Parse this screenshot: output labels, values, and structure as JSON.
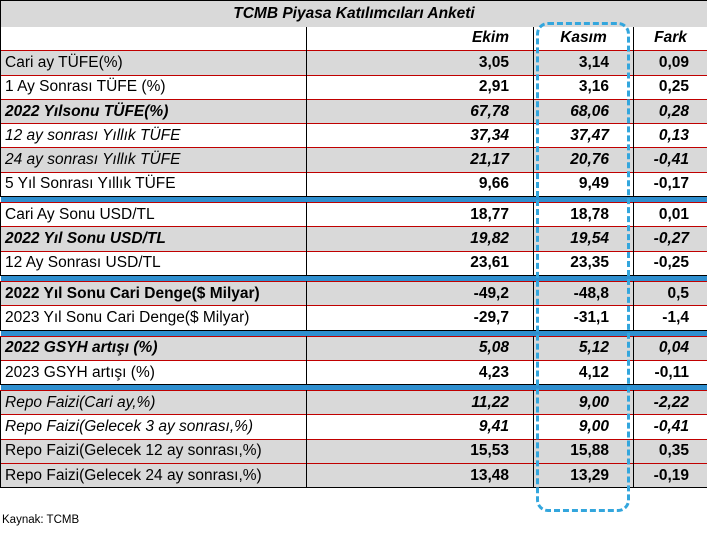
{
  "title": "TCMB Piyasa Katılımcıları Anketi",
  "columns": [
    "",
    "Ekim",
    "Kasım",
    "Fark"
  ],
  "groups": [
    [
      {
        "label": "Cari ay TÜFE(%)",
        "ekim": "3,05",
        "kasim": "3,14",
        "fark": "0,09",
        "shade": true,
        "bold": false,
        "italic": false
      },
      {
        "label": "1 Ay Sonrası TÜFE (%)",
        "ekim": "2,91",
        "kasim": "3,16",
        "fark": "0,25",
        "shade": false,
        "bold": false,
        "italic": false
      },
      {
        "label": "2022 Yılsonu TÜFE(%)",
        "ekim": "67,78",
        "kasim": "68,06",
        "fark": "0,28",
        "shade": true,
        "bold": true,
        "italic": true
      },
      {
        "label": "12 ay sonrası Yıllık TÜFE",
        "ekim": "37,34",
        "kasim": "37,47",
        "fark": "0,13",
        "shade": false,
        "bold": false,
        "italic": true
      },
      {
        "label": "24 ay sonrası Yıllık TÜFE",
        "ekim": "21,17",
        "kasim": "20,76",
        "fark": "-0,41",
        "shade": true,
        "bold": false,
        "italic": true
      },
      {
        "label": "5 Yıl Sonrası Yıllık TÜFE",
        "ekim": "9,66",
        "kasim": "9,49",
        "fark": "-0,17",
        "shade": false,
        "bold": false,
        "italic": false
      }
    ],
    [
      {
        "label": "Cari Ay Sonu USD/TL",
        "ekim": "18,77",
        "kasim": "18,78",
        "fark": "0,01",
        "shade": false,
        "bold": false,
        "italic": false
      },
      {
        "label": "2022 Yıl Sonu USD/TL",
        "ekim": "19,82",
        "kasim": "19,54",
        "fark": "-0,27",
        "shade": true,
        "bold": true,
        "italic": true
      },
      {
        "label": "12 Ay Sonrası USD/TL",
        "ekim": "23,61",
        "kasim": "23,35",
        "fark": "-0,25",
        "shade": false,
        "bold": false,
        "italic": false
      }
    ],
    [
      {
        "label": "2022 Yıl Sonu Cari Denge($ Milyar)",
        "ekim": "-49,2",
        "kasim": "-48,8",
        "fark": "0,5",
        "shade": true,
        "bold": true,
        "italic": false
      },
      {
        "label": "2023 Yıl Sonu Cari Denge($ Milyar)",
        "ekim": "-29,7",
        "kasim": "-31,1",
        "fark": "-1,4",
        "shade": false,
        "bold": false,
        "italic": false
      }
    ],
    [
      {
        "label": "2022 GSYH artışı (%)",
        "ekim": "5,08",
        "kasim": "5,12",
        "fark": "0,04",
        "shade": true,
        "bold": true,
        "italic": true
      },
      {
        "label": "2023 GSYH artışı (%)",
        "ekim": "4,23",
        "kasim": "4,12",
        "fark": "-0,11",
        "shade": false,
        "bold": false,
        "italic": false
      }
    ],
    [
      {
        "label": "Repo Faizi(Cari ay,%)",
        "ekim": "11,22",
        "kasim": "9,00",
        "fark": "-2,22",
        "shade": true,
        "bold": false,
        "italic": true
      },
      {
        "label": "Repo Faizi(Gelecek 3 ay sonrası,%)",
        "ekim": "9,41",
        "kasim": "9,00",
        "fark": "-0,41",
        "shade": false,
        "bold": false,
        "italic": true
      },
      {
        "label": "Repo Faizi(Gelecek 12 ay sonrası,%)",
        "ekim": "15,53",
        "kasim": "15,88",
        "fark": "0,35",
        "shade": true,
        "bold": false,
        "italic": false
      },
      {
        "label": "Repo Faizi(Gelecek 24 ay sonrası,%)",
        "ekim": "13,48",
        "kasim": "13,29",
        "fark": "-0,19",
        "shade": true,
        "bold": false,
        "italic": false
      }
    ]
  ],
  "source": "Kaynak: TCMB",
  "colors": {
    "shade": "#d9d9d9",
    "separator": "#2f8fcf",
    "highlight": "#33a6dd",
    "row_border": "#c00000"
  }
}
